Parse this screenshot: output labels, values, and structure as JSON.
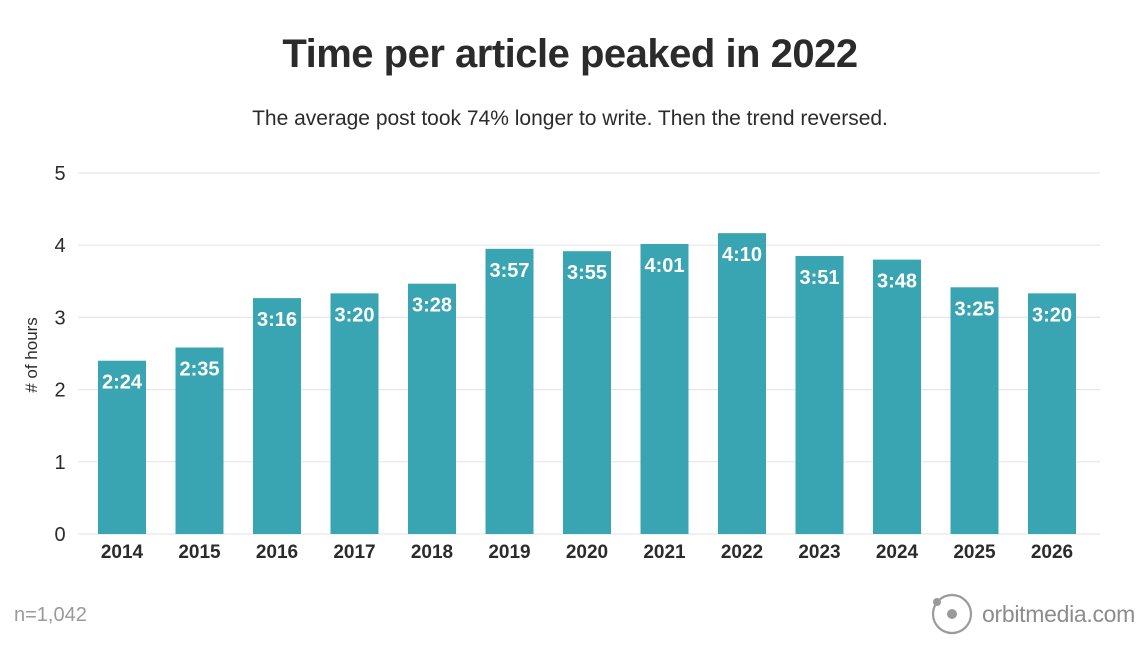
{
  "chart_data": {
    "type": "bar",
    "title": "Time per article peaked in 2022",
    "subtitle": "The average post took 74% longer to write. Then the trend reversed.",
    "xlabel": "",
    "ylabel": "# of hours",
    "ylim": [
      0,
      5
    ],
    "yticks": [
      "0",
      "1",
      "2",
      "3",
      "4",
      "5"
    ],
    "grid": true,
    "categories": [
      "2014",
      "2015",
      "2016",
      "2017",
      "2018",
      "2019",
      "2020",
      "2021",
      "2022",
      "2023",
      "2024",
      "2025",
      "2026"
    ],
    "values": [
      2.4,
      2.583,
      3.267,
      3.333,
      3.467,
      3.95,
      3.917,
      4.017,
      4.167,
      3.85,
      3.8,
      3.417,
      3.333
    ],
    "data_labels": [
      "2:24",
      "2:35",
      "3:16",
      "3:20",
      "3:28",
      "3:57",
      "3:55",
      "4:01",
      "4:10",
      "3:51",
      "3:48",
      "3:25",
      "3:20"
    ],
    "bar_color": "#3aa5b2",
    "label_color": "#ffffff"
  },
  "footer": {
    "sample_size": "n=1,042",
    "brand": "orbitmedia.com"
  },
  "colors": {
    "gridline": "#e6e6e6",
    "axis_text": "#2b2b2b",
    "brand_gray": "#9a9a9a"
  }
}
